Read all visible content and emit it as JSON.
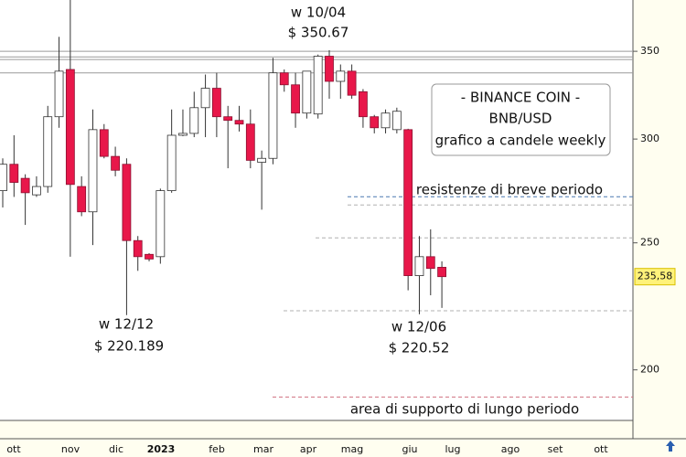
{
  "chart_data": {
    "type": "candlestick",
    "categories": [
      null,
      null,
      null,
      null,
      null,
      null,
      null,
      null,
      null,
      null,
      null,
      null,
      null,
      null,
      null,
      null,
      null,
      null,
      null,
      null,
      null,
      null,
      null,
      null,
      null,
      null,
      null,
      null,
      null,
      null,
      null,
      null,
      null,
      null,
      null,
      null,
      null,
      null,
      null,
      null
    ],
    "open": [
      274,
      287,
      280,
      272,
      276,
      312,
      339,
      276,
      264,
      305,
      291,
      287,
      251,
      245,
      244,
      274,
      302,
      303,
      317,
      328,
      312,
      310,
      308,
      288,
      290,
      337,
      330,
      314,
      313.5,
      347,
      332,
      338,
      326,
      312,
      306,
      305,
      305,
      236,
      244,
      239.5
    ],
    "high": [
      290,
      302,
      282,
      281,
      318,
      359,
      390,
      281,
      316,
      308,
      296,
      290,
      253,
      245.5,
      275,
      316,
      316,
      326,
      336,
      337,
      318,
      318,
      316,
      294,
      346,
      339,
      337,
      338,
      348,
      350.67,
      342,
      342,
      327.5,
      313,
      316,
      317,
      305.5,
      253,
      256,
      242
    ],
    "low": [
      266,
      271,
      258,
      271,
      273,
      306,
      244,
      262,
      249,
      290,
      281,
      220.189,
      238,
      242,
      241,
      273,
      301.5,
      301,
      301,
      301,
      285,
      304,
      285,
      265,
      287,
      326,
      306,
      311,
      311,
      322,
      322,
      322,
      306,
      303,
      303,
      303,
      230,
      220.52,
      228,
      223
    ],
    "close": [
      287,
      278,
      273,
      276,
      312,
      338,
      277,
      264,
      305,
      291,
      284,
      251,
      244,
      243,
      274,
      302,
      303,
      317,
      328,
      312,
      310,
      308,
      289,
      290,
      337,
      330,
      314,
      338,
      347,
      332,
      338,
      324,
      312,
      306,
      314,
      315,
      236,
      244,
      239,
      235.58
    ],
    "up_color": "#ffffff",
    "down_color": "#e8174a",
    "xtick_labels": [
      "ott",
      "nov",
      "dic",
      "2023",
      "feb",
      "mar",
      "apr",
      "mag",
      "giu",
      "lug",
      "ago",
      "set",
      "ott"
    ],
    "ylim": [
      183,
      383
    ],
    "yticks": [
      350,
      300,
      250,
      200
    ],
    "log_scale": true,
    "last_price": 235.58,
    "last_price_label": "235,58",
    "hlines": [
      {
        "value": 350,
        "color": "#9a9a9a",
        "dash": false
      },
      {
        "value": 346.6,
        "color": "#9a9a9a",
        "dash": false
      },
      {
        "value": 345,
        "color": "#9a9a9a",
        "dash": false
      },
      {
        "value": 337,
        "color": "#9a9a9a",
        "dash": false
      },
      {
        "value": 271.1,
        "color": "#4a78b0",
        "dash": true
      },
      {
        "value": 267.2,
        "color": "#b0b0b0",
        "dash": true
      },
      {
        "value": 252.2,
        "color": "#b0b0b0",
        "dash": true
      },
      {
        "value": 221.9,
        "color": "#b0b0b0",
        "dash": true
      },
      {
        "value": 190.7,
        "color": "#d07080",
        "dash": true
      }
    ],
    "annotations": [
      "w 10/04",
      "$ 350.67",
      "w 12/12",
      "$ 220.189",
      "w 12/06",
      "$ 220.52",
      "resistenze di breve periodo",
      "area di supporto di lungo periodo"
    ],
    "info_box": [
      "- BINANCE COIN -",
      "BNB/USD",
      "grafico a  candele weekly"
    ]
  }
}
